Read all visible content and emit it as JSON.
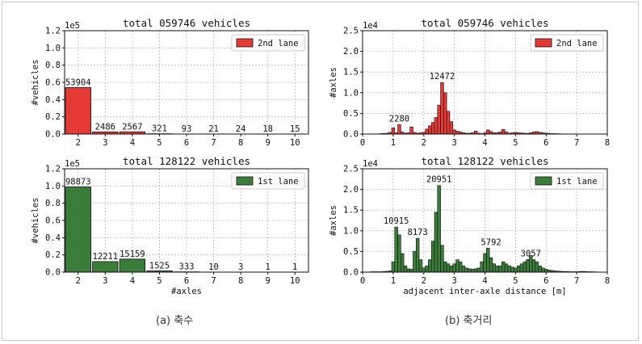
{
  "captions": {
    "left": "(a) 축수",
    "right": "(b) 축거리"
  },
  "colors": {
    "red": "#e53935",
    "green": "#3a7d3a",
    "edge": "#111111",
    "grid": "#b9b9b9"
  },
  "chart_data": [
    {
      "id": "a1",
      "type": "bar",
      "title": "total 059746 vehicles",
      "ylabel": "#vehicles",
      "xlabel": "",
      "legend": "2nd lane",
      "legend_position": "top-right",
      "color": "red",
      "categories": [
        "2",
        "3",
        "4",
        "5",
        "6",
        "7",
        "8",
        "9",
        "10"
      ],
      "values": [
        53904,
        2486,
        2567,
        321,
        93,
        21,
        24,
        18,
        15
      ],
      "labels": [
        "53904",
        "2486",
        "2567",
        "321",
        "93",
        "21",
        "24",
        "18",
        "15"
      ],
      "ylim": [
        0,
        120000
      ],
      "y_exponent": "1e5",
      "yticks": [
        0,
        20000,
        40000,
        60000,
        80000,
        100000,
        120000
      ],
      "ytick_labels": [
        "0.0",
        "0.2",
        "0.4",
        "0.6",
        "0.8",
        "1.0",
        "1.2"
      ],
      "grid": true
    },
    {
      "id": "a2",
      "type": "bar",
      "title": "total 128122 vehicles",
      "ylabel": "#vehicles",
      "xlabel": "#axles",
      "legend": "1st lane",
      "legend_position": "top-right",
      "color": "green",
      "categories": [
        "2",
        "3",
        "4",
        "5",
        "6",
        "7",
        "8",
        "9",
        "10"
      ],
      "values": [
        98873,
        12211,
        15159,
        1525,
        333,
        10,
        3,
        1,
        1
      ],
      "labels": [
        "98873",
        "12211",
        "15159",
        "1525",
        "333",
        "10",
        "3",
        "1",
        "1"
      ],
      "ylim": [
        0,
        120000
      ],
      "y_exponent": "1e5",
      "yticks": [
        0,
        20000,
        40000,
        60000,
        80000,
        100000,
        120000
      ],
      "ytick_labels": [
        "0.0",
        "0.2",
        "0.4",
        "0.6",
        "0.8",
        "1.0",
        "1.2"
      ],
      "grid": true
    },
    {
      "id": "b1",
      "type": "bar",
      "title": "total 059746 vehicles",
      "ylabel": "#axles",
      "xlabel": "",
      "legend": "2nd lane",
      "legend_position": "top-right",
      "color": "red",
      "xlim": [
        0,
        8
      ],
      "xticks": [
        0,
        1,
        2,
        3,
        4,
        5,
        6,
        7,
        8
      ],
      "ylim": [
        0,
        25000
      ],
      "y_exponent": "1e4",
      "yticks": [
        0,
        5000,
        10000,
        15000,
        20000,
        25000
      ],
      "ytick_labels": [
        "0.0",
        "0.5",
        "1.0",
        "1.5",
        "2.0",
        "2.5"
      ],
      "bin_width": 0.1,
      "x": [
        0.6,
        0.7,
        0.8,
        0.9,
        1.0,
        1.1,
        1.2,
        1.3,
        1.4,
        1.5,
        1.6,
        1.7,
        1.8,
        1.9,
        2.0,
        2.1,
        2.2,
        2.3,
        2.4,
        2.5,
        2.6,
        2.7,
        2.8,
        2.9,
        3.0,
        3.1,
        3.2,
        3.3,
        3.4,
        3.5,
        3.6,
        3.7,
        3.8,
        3.9,
        4.0,
        4.1,
        4.2,
        4.3,
        4.4,
        4.5,
        4.6,
        4.7,
        4.8,
        4.9,
        5.0,
        5.1,
        5.2,
        5.3,
        5.4,
        5.5,
        5.6,
        5.7,
        5.8,
        5.9,
        6.0,
        6.1,
        6.2,
        6.3,
        6.4,
        6.5
      ],
      "values": [
        100,
        150,
        200,
        400,
        1500,
        300,
        2280,
        500,
        200,
        300,
        1700,
        400,
        200,
        300,
        400,
        1200,
        2000,
        2800,
        4000,
        7000,
        12472,
        10000,
        5500,
        3000,
        1000,
        700,
        500,
        300,
        200,
        200,
        300,
        700,
        200,
        100,
        300,
        1000,
        600,
        300,
        300,
        500,
        1100,
        500,
        200,
        300,
        400,
        300,
        250,
        200,
        150,
        300,
        500,
        600,
        400,
        300,
        200,
        150,
        100,
        100,
        80,
        50
      ],
      "annotations": [
        {
          "x": 1.2,
          "y": 2280,
          "text": "2280"
        },
        {
          "x": 2.6,
          "y": 12472,
          "text": "12472"
        }
      ],
      "grid": true
    },
    {
      "id": "b2",
      "type": "bar",
      "title": "total 128122 vehicles",
      "ylabel": "#axles",
      "xlabel": "adjacent inter-axle distance [m]",
      "legend": "1st lane",
      "legend_position": "top-right",
      "color": "green",
      "xlim": [
        0,
        8
      ],
      "xticks": [
        0,
        1,
        2,
        3,
        4,
        5,
        6,
        7,
        8
      ],
      "ylim": [
        0,
        25000
      ],
      "y_exponent": "1e4",
      "yticks": [
        0,
        5000,
        10000,
        15000,
        20000,
        25000
      ],
      "ytick_labels": [
        "0.0",
        "0.5",
        "1.0",
        "1.5",
        "2.0",
        "2.5"
      ],
      "bin_width": 0.1,
      "x": [
        0.3,
        0.4,
        0.5,
        0.6,
        0.7,
        0.8,
        0.9,
        1.0,
        1.1,
        1.2,
        1.3,
        1.4,
        1.5,
        1.6,
        1.7,
        1.8,
        1.9,
        2.0,
        2.1,
        2.2,
        2.3,
        2.4,
        2.5,
        2.6,
        2.7,
        2.8,
        2.9,
        3.0,
        3.1,
        3.2,
        3.3,
        3.4,
        3.5,
        3.6,
        3.7,
        3.8,
        3.9,
        4.0,
        4.1,
        4.2,
        4.3,
        4.4,
        4.5,
        4.6,
        4.7,
        4.8,
        4.9,
        5.0,
        5.1,
        5.2,
        5.3,
        5.4,
        5.5,
        5.6,
        5.7,
        5.8,
        5.9,
        6.0,
        6.1,
        6.2,
        6.3,
        6.4,
        6.5,
        6.6,
        6.7,
        6.8,
        6.9,
        7.0,
        7.1,
        7.2,
        7.3,
        7.4,
        7.5,
        7.6
      ],
      "values": [
        100,
        100,
        100,
        100,
        150,
        200,
        300,
        2500,
        10915,
        9000,
        4500,
        1500,
        800,
        700,
        5000,
        8173,
        3000,
        1000,
        1500,
        3000,
        7500,
        14500,
        20951,
        6500,
        2500,
        2000,
        1500,
        2000,
        3000,
        2500,
        1500,
        1000,
        800,
        700,
        800,
        1000,
        2500,
        4500,
        5792,
        3500,
        2000,
        1500,
        1500,
        2500,
        2000,
        1500,
        1200,
        1000,
        1500,
        2000,
        2500,
        3057,
        4000,
        3000,
        2500,
        1500,
        1000,
        700,
        500,
        400,
        300,
        250,
        200,
        150,
        150,
        100,
        100,
        100,
        150,
        200,
        150,
        100,
        100,
        80
      ],
      "annotations": [
        {
          "x": 1.1,
          "y": 10915,
          "text": "10915"
        },
        {
          "x": 1.8,
          "y": 8173,
          "text": "8173"
        },
        {
          "x": 2.5,
          "y": 20951,
          "text": "20951"
        },
        {
          "x": 4.2,
          "y": 5792,
          "text": "5792"
        },
        {
          "x": 5.5,
          "y": 3057,
          "text": "3057"
        }
      ],
      "grid": true
    }
  ]
}
